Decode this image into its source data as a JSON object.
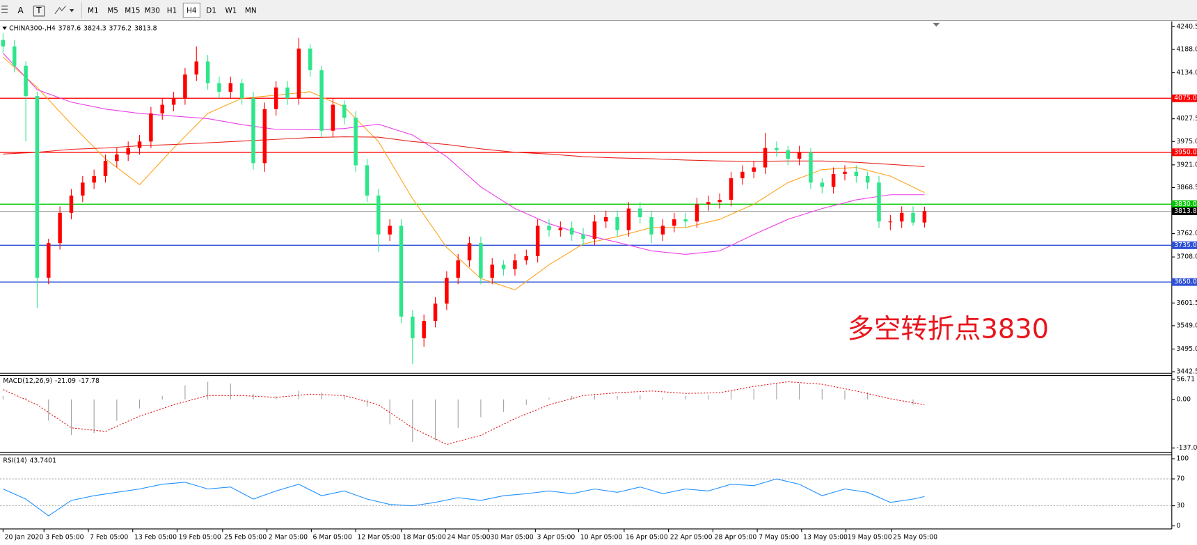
{
  "toolbar": {
    "tools": [
      "A",
      "T"
    ],
    "timeframes": [
      "M1",
      "M5",
      "M15",
      "M30",
      "H1",
      "H4",
      "D1",
      "W1",
      "MN"
    ],
    "active": "H4"
  },
  "chart_data": [
    {
      "type": "candlestick",
      "symbol": "CHINA300-,H4",
      "open": [
        4210,
        4195,
        4150,
        4080,
        3660,
        3740,
        3810,
        3850,
        3880,
        3895,
        3930,
        3945,
        3960,
        3975,
        4040,
        4060,
        4075,
        4130,
        4160,
        4110,
        4090,
        4110,
        4075,
        3925,
        4050,
        4100,
        4075,
        4190,
        4140,
        4000,
        4060,
        4030,
        3920,
        3850,
        3760,
        3780,
        3570,
        3520,
        3560,
        3600,
        3660,
        3700,
        3740,
        3660,
        3690,
        3680,
        3700,
        3710,
        3780,
        3770,
        3775,
        3760,
        3750,
        3790,
        3800,
        3770,
        3820,
        3800,
        3760,
        3780,
        3795,
        3790,
        3830,
        3835,
        3840,
        3890,
        3905,
        3915,
        3960,
        3955,
        3935,
        3950,
        3880,
        3870,
        3900,
        3905,
        3895,
        3880,
        3790,
        3790,
        3810,
        3787.6
      ],
      "high": [
        4225,
        4210,
        4160,
        4090,
        3750,
        3825,
        3865,
        3895,
        3910,
        3945,
        3960,
        3975,
        3990,
        4055,
        4075,
        4090,
        4145,
        4195,
        4175,
        4125,
        4125,
        4120,
        4090,
        4065,
        4115,
        4115,
        4215,
        4200,
        4150,
        4075,
        4070,
        4045,
        3935,
        3865,
        3795,
        3795,
        3585,
        3575,
        3615,
        3675,
        3715,
        3755,
        3755,
        3705,
        3700,
        3715,
        3725,
        3795,
        3795,
        3790,
        3790,
        3775,
        3805,
        3815,
        3815,
        3835,
        3835,
        3815,
        3795,
        3810,
        3810,
        3845,
        3850,
        3855,
        3905,
        3920,
        3930,
        3995,
        3975,
        3965,
        3965,
        3960,
        3890,
        3915,
        3920,
        3920,
        3905,
        3895,
        3805,
        3825,
        3825,
        3824.3
      ],
      "low": [
        4180,
        4135,
        3975,
        3590,
        3645,
        3725,
        3795,
        3835,
        3865,
        3880,
        3915,
        3930,
        3945,
        3960,
        4025,
        4045,
        4060,
        4115,
        4095,
        4075,
        4075,
        4060,
        3910,
        3905,
        4035,
        4060,
        4060,
        4125,
        3985,
        3985,
        4015,
        3905,
        3835,
        3720,
        3745,
        3555,
        3460,
        3500,
        3545,
        3585,
        3645,
        3685,
        3645,
        3645,
        3665,
        3665,
        3690,
        3695,
        3755,
        3755,
        3745,
        3735,
        3735,
        3775,
        3755,
        3755,
        3785,
        3740,
        3745,
        3765,
        3775,
        3775,
        3815,
        3820,
        3825,
        3875,
        3890,
        3900,
        3940,
        3920,
        3920,
        3865,
        3855,
        3855,
        3885,
        3880,
        3865,
        3775,
        3770,
        3775,
        3780,
        3776.2
      ],
      "close": [
        4195,
        4150,
        4080,
        3660,
        3740,
        3810,
        3850,
        3880,
        3895,
        3930,
        3945,
        3960,
        3975,
        4040,
        4060,
        4075,
        4130,
        4160,
        4110,
        4090,
        4110,
        4075,
        3925,
        4050,
        4100,
        4075,
        4190,
        4140,
        4000,
        4060,
        4030,
        3920,
        3850,
        3760,
        3780,
        3570,
        3520,
        3560,
        3600,
        3660,
        3700,
        3740,
        3660,
        3690,
        3680,
        3700,
        3710,
        3780,
        3770,
        3775,
        3760,
        3750,
        3790,
        3800,
        3770,
        3820,
        3800,
        3760,
        3780,
        3795,
        3790,
        3830,
        3835,
        3840,
        3890,
        3905,
        3915,
        3960,
        3955,
        3935,
        3950,
        3880,
        3870,
        3900,
        3905,
        3895,
        3880,
        3790,
        3790,
        3810,
        3787.6,
        3813.8
      ],
      "up_color": "#ff0000",
      "down_color": "#2ee68a",
      "ylim": [
        3442.5,
        4240.5
      ],
      "yticks": [
        4240.5,
        {
          "value": 4188,
          "label": "4188.0"
        },
        {
          "value": 4134,
          "label": "4134.0"
        },
        4027.5,
        {
          "value": 3975,
          "label": "3975.0"
        },
        {
          "value": 3921,
          "label": "3921.0"
        },
        3868.5,
        {
          "value": 3762,
          "label": "3762.0"
        },
        {
          "value": 3708,
          "label": "3708.0"
        },
        3601.5,
        {
          "value": 3549,
          "label": "3549.0"
        },
        {
          "value": 3495,
          "label": "3495.0"
        },
        3442.5
      ],
      "levels": [
        {
          "value": 4075,
          "label": "4075.0",
          "color": "#ff0000"
        },
        {
          "value": 3950,
          "label": "3950.0",
          "color": "#ff0000"
        },
        {
          "value": 3830,
          "label": "3830.0",
          "color": "#00c800"
        },
        {
          "value": 3735,
          "label": "3735.0",
          "color": "#2b4fd6"
        },
        {
          "value": 3650,
          "label": "3650.0",
          "color": "#2b4fd6"
        }
      ],
      "ma": [
        {
          "color": "#ffa31a",
          "x": [
            0,
            3,
            6,
            9,
            12,
            15,
            18,
            21,
            24,
            27,
            30,
            33,
            36,
            39,
            42,
            45,
            48,
            51,
            54,
            57,
            60,
            63,
            66,
            69,
            72,
            75,
            78,
            81
          ],
          "values": [
            4170,
            4100,
            4015,
            3935,
            3875,
            3960,
            4040,
            4075,
            4082,
            4090,
            4055,
            3975,
            3843,
            3730,
            3658,
            3632,
            3690,
            3738,
            3755,
            3776,
            3776,
            3795,
            3830,
            3880,
            3910,
            3915,
            3895,
            3857
          ]
        },
        {
          "color": "#ee3ee8",
          "x": [
            0,
            3,
            6,
            9,
            12,
            15,
            18,
            21,
            24,
            27,
            30,
            33,
            36,
            39,
            42,
            45,
            48,
            51,
            54,
            57,
            60,
            63,
            66,
            69,
            72,
            75,
            78,
            81
          ],
          "values": [
            4179,
            4095,
            4066,
            4050,
            4040,
            4034,
            4028,
            4014,
            4003,
            4002,
            4005,
            4015,
            3990,
            3940,
            3870,
            3820,
            3785,
            3760,
            3742,
            3722,
            3714,
            3722,
            3760,
            3795,
            3820,
            3840,
            3852,
            3852
          ]
        },
        {
          "color": "#e8261f",
          "x": [
            0,
            3,
            6,
            9,
            12,
            15,
            18,
            21,
            24,
            27,
            30,
            33,
            36,
            39,
            42,
            45,
            48,
            51,
            54,
            57,
            60,
            63,
            66,
            69,
            72,
            75,
            78,
            81
          ],
          "values": [
            3946,
            3950,
            3957,
            3960,
            3965,
            3968,
            3972,
            3976,
            3980,
            3984,
            3986,
            3985,
            3975,
            3968,
            3958,
            3950,
            3946,
            3940,
            3937,
            3935,
            3932,
            3930,
            3929,
            3930,
            3930,
            3927,
            3922,
            3917
          ]
        }
      ],
      "annotation": {
        "text": "多空转折点3830",
        "color": "#e8141c"
      },
      "time_labels": [
        "20 Jan 2020",
        "3 Feb 05:00",
        "7 Feb 05:00",
        "13 Feb 05:00",
        "19 Feb 05:00",
        "25 Feb 05:00",
        "2 Mar 05:00",
        "6 Mar 05:00",
        "12 Mar 05:00",
        "18 Mar 05:00",
        "24 Mar 05:00",
        "30 Mar 05:00",
        "3 Apr 05:00",
        "10 Apr 05:00",
        "16 Apr 05:00",
        "22 Apr 05:00",
        "28 Apr 05:00",
        "7 May 05:00",
        "13 May 05:00",
        "19 May 05:00",
        "25 May 05:00"
      ],
      "time_label_x": [
        0,
        3.6,
        7.5,
        11.4,
        15.3,
        19.3,
        23.2,
        27.1,
        31,
        35,
        38.9,
        42.7,
        46.8,
        50.6,
        54.6,
        58.5,
        62.4,
        66.3,
        70.2,
        74.1,
        78.1
      ]
    },
    {
      "type": "macd",
      "title": "MACD(12,26,9)",
      "readout": [
        -21.09,
        -17.78
      ],
      "ylim": [
        -137.01,
        56.71
      ],
      "yticks": [
        56.71,
        {
          "value": 0,
          "label": "0.00"
        },
        -137.01
      ],
      "histogram": {
        "color": "#a0a0a0",
        "x": [
          0,
          2,
          4,
          6,
          8,
          10,
          12,
          14,
          16,
          18,
          20,
          22,
          24,
          26,
          28,
          30,
          32,
          34,
          36,
          38,
          40,
          42,
          44,
          46,
          48,
          50,
          52,
          54,
          56,
          58,
          60,
          62,
          64,
          66,
          68,
          70,
          72,
          74,
          76,
          78,
          80
        ],
        "values": [
          10,
          5,
          -60,
          -100,
          -95,
          -60,
          -25,
          10,
          40,
          50,
          45,
          15,
          10,
          25,
          20,
          10,
          -20,
          -70,
          -120,
          -115,
          -80,
          -50,
          -35,
          -15,
          5,
          10,
          15,
          10,
          12,
          5,
          10,
          12,
          25,
          30,
          45,
          45,
          30,
          25,
          20,
          0,
          -15
        ]
      },
      "signal": {
        "color": "#e8141c",
        "x": [
          0,
          3,
          6,
          9,
          12,
          15,
          18,
          21,
          24,
          27,
          30,
          33,
          36,
          39,
          42,
          45,
          48,
          51,
          54,
          57,
          60,
          63,
          66,
          69,
          72,
          75,
          78,
          81
        ],
        "values": [
          28,
          -15,
          -80,
          -90,
          -47,
          -15,
          11,
          11,
          6,
          15,
          11,
          -15,
          -80,
          -127,
          -101,
          -54,
          -15,
          11,
          19,
          24,
          17,
          19,
          37,
          50,
          43,
          24,
          2,
          -15
        ]
      }
    },
    {
      "type": "rsi",
      "title": "RSI(14)",
      "readout": 43.7401,
      "ylim": [
        0,
        100
      ],
      "yticks": [
        100,
        70,
        30,
        0
      ],
      "levels": [
        70,
        30
      ],
      "color": "#1e90ff",
      "x": [
        0,
        2,
        4,
        6,
        8,
        10,
        12,
        14,
        16,
        18,
        20,
        22,
        24,
        26,
        28,
        30,
        32,
        34,
        36,
        38,
        40,
        42,
        44,
        46,
        48,
        50,
        52,
        54,
        56,
        58,
        60,
        62,
        64,
        66,
        68,
        70,
        72,
        74,
        76,
        78,
        80,
        81
      ],
      "values": [
        55,
        40,
        15,
        38,
        45,
        50,
        55,
        62,
        65,
        55,
        58,
        40,
        52,
        62,
        45,
        52,
        40,
        32,
        30,
        35,
        42,
        38,
        45,
        48,
        52,
        48,
        55,
        50,
        58,
        48,
        55,
        52,
        62,
        60,
        70,
        62,
        45,
        55,
        50,
        35,
        40,
        43.7401
      ]
    }
  ]
}
